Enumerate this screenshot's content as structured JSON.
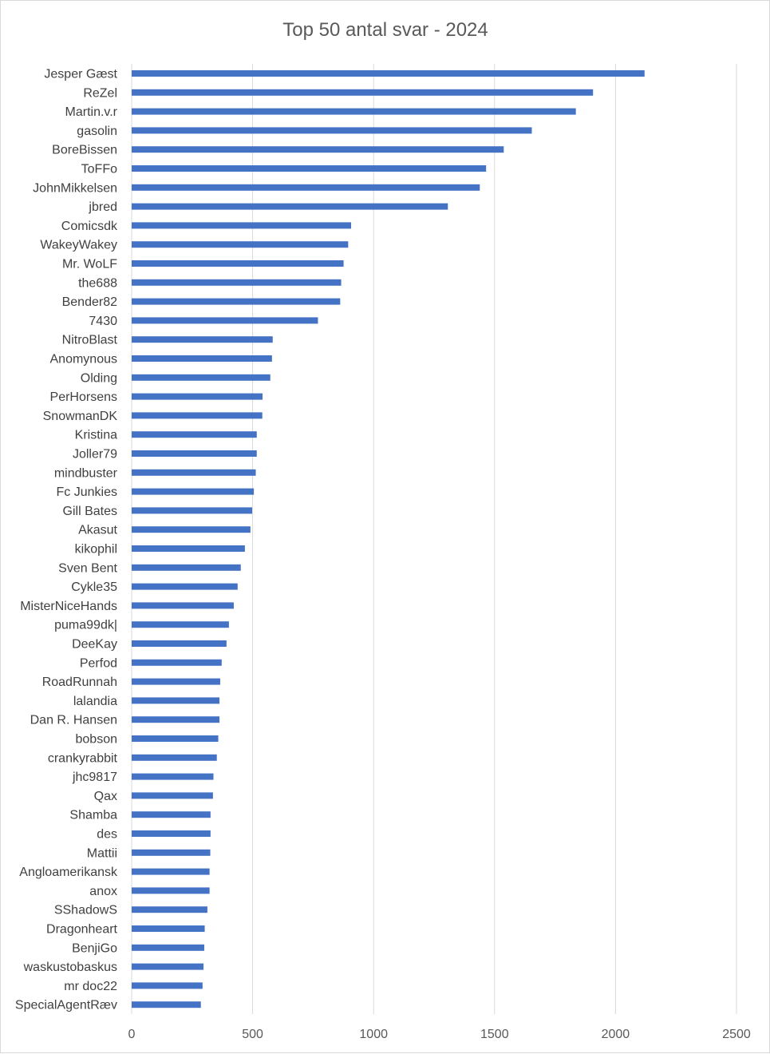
{
  "chart_data": {
    "type": "bar",
    "orientation": "horizontal",
    "title": "Top 50 antal svar - 2024",
    "xlabel": "",
    "ylabel": "",
    "xlim": [
      0,
      2500
    ],
    "xticks": [
      0,
      500,
      1000,
      1500,
      2000,
      2500
    ],
    "grid": "vertical",
    "bar_color": "#4472c4",
    "categories": [
      "Jesper Gæst",
      "ReZel",
      "Martin.v.r",
      "gasolin",
      "BoreBissen",
      "ToFFo",
      "JohnMikkelsen",
      "jbred",
      "Comicsdk",
      "WakeyWakey",
      "Mr. WoLF",
      "the688",
      "Bender82",
      "7430",
      "NitroBlast",
      "Anomynous",
      "Olding",
      "PerHorsens",
      "SnowmanDK",
      "Kristina",
      "Joller79",
      "mindbuster",
      "Fc Junkies",
      "Gill Bates",
      "Akasut",
      "kikophil",
      "Sven Bent",
      "Cykle35",
      "MisterNiceHands",
      "puma99dk|",
      "DeeKay",
      "Perfod",
      "RoadRunnah",
      "lalandia",
      "Dan R. Hansen",
      "bobson",
      "crankyrabbit",
      "jhc9817",
      "Qax",
      "Shamba",
      "des",
      "Mattii",
      "Angloamerikansk",
      "anox",
      "SShadowS",
      "Dragonheart",
      "BenjiGo",
      "waskustobaskus",
      "mr doc22",
      "SpecialAgentRæv"
    ],
    "values": [
      2120,
      1907,
      1836,
      1654,
      1538,
      1465,
      1439,
      1307,
      907,
      895,
      876,
      866,
      862,
      770,
      583,
      580,
      573,
      541,
      540,
      517,
      517,
      513,
      505,
      498,
      491,
      468,
      451,
      438,
      422,
      402,
      392,
      372,
      366,
      363,
      363,
      358,
      352,
      338,
      336,
      326,
      326,
      325,
      322,
      322,
      313,
      302,
      300,
      297,
      293,
      286
    ]
  }
}
